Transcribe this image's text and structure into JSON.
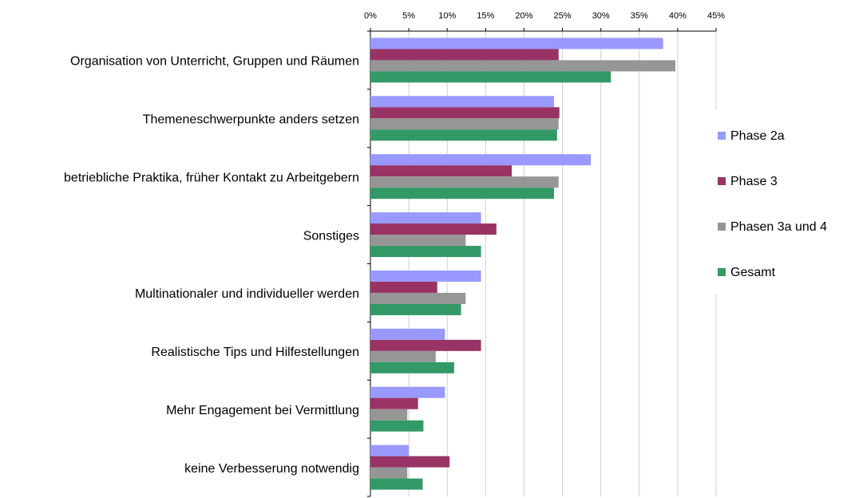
{
  "chart_data": {
    "type": "hbar",
    "categories": [
      "Organisation von Unterricht, Gruppen und Räumen",
      "Themeneschwerpunkte anders setzen",
      "betriebliche Praktika, früher Kontakt zu Arbeitgebern",
      "Sonstiges",
      "Multinationaler und individueller werden",
      "Realistische Tips und Hilfestellungen",
      "Mehr Engagement bei Vermittlung",
      "keine Verbesserung notwendig"
    ],
    "series": [
      {
        "name": "Phase 2a",
        "color": "#9999ff",
        "values": [
          38.1,
          23.9,
          28.7,
          14.4,
          14.4,
          9.7,
          9.7,
          5.0
        ]
      },
      {
        "name": "Phase 3",
        "color": "#993366",
        "values": [
          24.5,
          24.6,
          18.4,
          16.4,
          8.7,
          14.4,
          6.2,
          10.3
        ]
      },
      {
        "name": "Phasen 3a und 4",
        "color": "#969696",
        "values": [
          39.7,
          24.5,
          24.5,
          12.4,
          12.4,
          8.5,
          4.8,
          4.8
        ]
      },
      {
        "name": "Gesamt",
        "color": "#339966",
        "values": [
          31.3,
          24.3,
          23.9,
          14.4,
          11.8,
          10.9,
          6.9,
          6.8
        ]
      }
    ],
    "xlim": [
      0,
      45
    ],
    "xticks": [
      {
        "value": 0,
        "label": "0%"
      },
      {
        "value": 5,
        "label": "5%"
      },
      {
        "value": 10,
        "label": "10%"
      },
      {
        "value": 15,
        "label": "15%"
      },
      {
        "value": 20,
        "label": "20%"
      },
      {
        "value": 25,
        "label": "25%"
      },
      {
        "value": 30,
        "label": "30%"
      },
      {
        "value": 35,
        "label": "35%"
      },
      {
        "value": 40,
        "label": "40%"
      },
      {
        "value": 45,
        "label": "45%"
      }
    ],
    "grid": true,
    "legend": "right"
  }
}
